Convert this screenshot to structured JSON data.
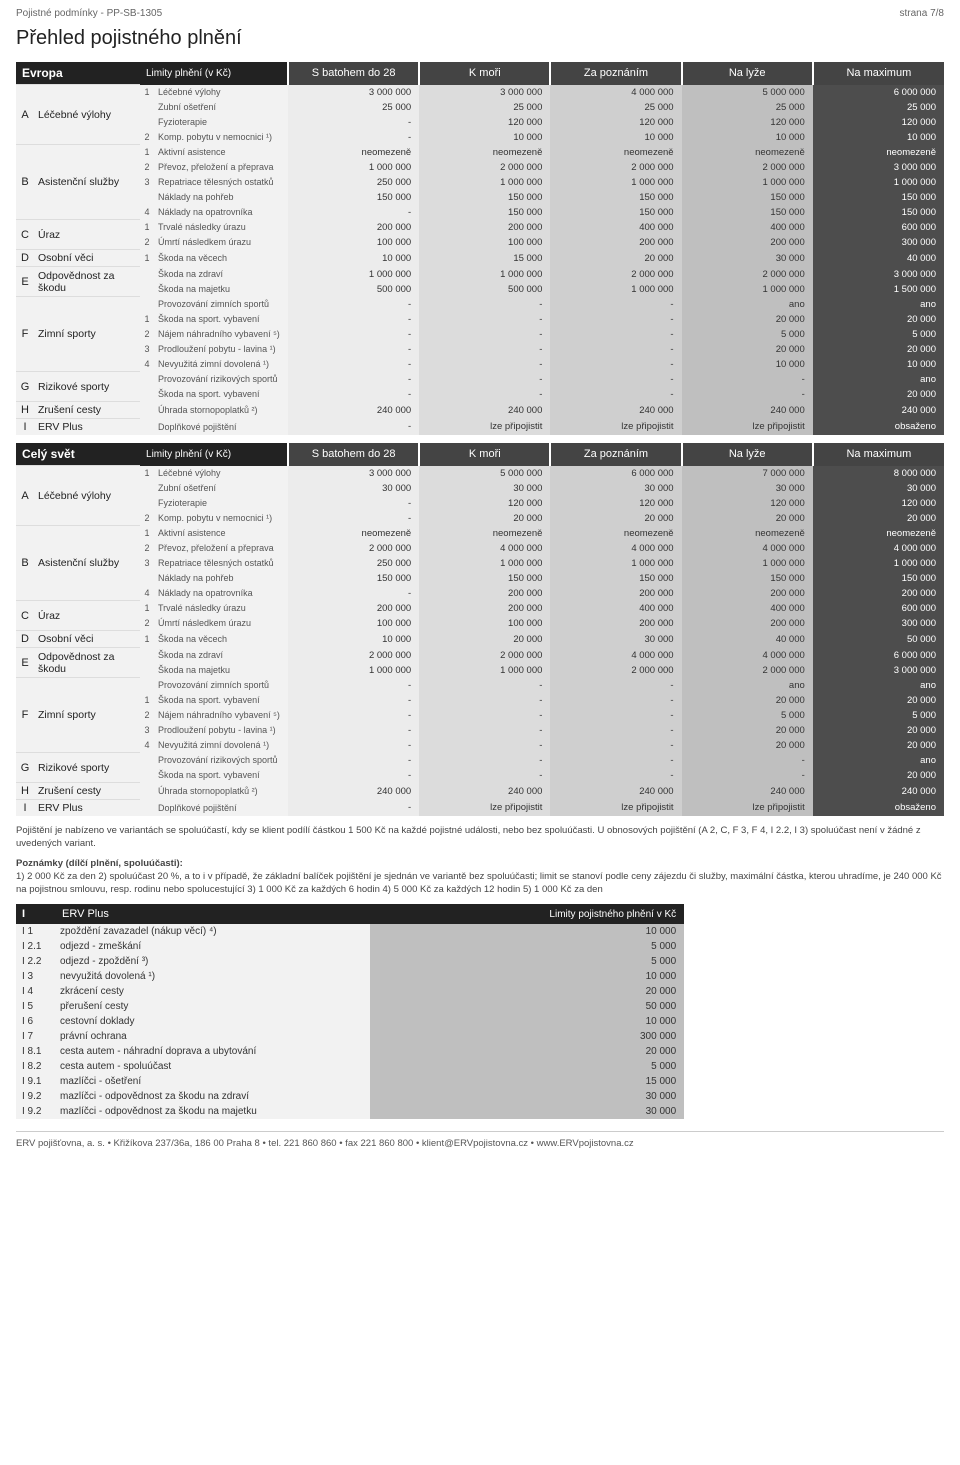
{
  "header": {
    "left": "Pojistné podmínky - PP-SB-1305",
    "right": "strana 7/8"
  },
  "title": "Přehled pojistného plnění",
  "region_headers": [
    "S batohem do 28",
    "K moři",
    "Za poznáním",
    "Na lyže",
    "Na maximum"
  ],
  "limits_label": "Limity plnění (v Kč)",
  "regions": [
    {
      "name": "Evropa",
      "rows": [
        {
          "l": "A",
          "cat": "Léčebné výlohy",
          "span": 4,
          "n": "1",
          "item": "Léčebné výlohy",
          "v": [
            "3 000 000",
            "3 000 000",
            "4 000 000",
            "5 000 000",
            "6 000 000"
          ]
        },
        {
          "n": "",
          "item": "Zubní ošetření",
          "v": [
            "25 000",
            "25 000",
            "25 000",
            "25 000",
            "25 000"
          ]
        },
        {
          "n": "",
          "item": "Fyzioterapie",
          "v": [
            "-",
            "120 000",
            "120 000",
            "120 000",
            "120 000"
          ]
        },
        {
          "n": "2",
          "item": "Komp. pobytu v nemocnici ¹)",
          "v": [
            "-",
            "10 000",
            "10 000",
            "10 000",
            "10 000"
          ]
        },
        {
          "l": "B",
          "cat": "Asistenční služby",
          "span": 5,
          "n": "1",
          "item": "Aktivní asistence",
          "v": [
            "neomezeně",
            "neomezeně",
            "neomezeně",
            "neomezeně",
            "neomezeně"
          ]
        },
        {
          "n": "2",
          "item": "Převoz, přeložení a přeprava",
          "v": [
            "1 000 000",
            "2 000 000",
            "2 000 000",
            "2 000 000",
            "3 000 000"
          ]
        },
        {
          "n": "3",
          "item": "Repatriace tělesných ostatků",
          "v": [
            "250 000",
            "1 000 000",
            "1 000 000",
            "1 000 000",
            "1 000 000"
          ]
        },
        {
          "n": "",
          "item": "Náklady na pohřeb",
          "v": [
            "150 000",
            "150 000",
            "150 000",
            "150 000",
            "150 000"
          ]
        },
        {
          "n": "4",
          "item": "Náklady na opatrovníka",
          "v": [
            "-",
            "150 000",
            "150 000",
            "150 000",
            "150 000"
          ]
        },
        {
          "l": "C",
          "cat": "Úraz",
          "span": 2,
          "n": "1",
          "item": "Trvalé následky úrazu",
          "v": [
            "200 000",
            "200 000",
            "400 000",
            "400 000",
            "600 000"
          ]
        },
        {
          "n": "2",
          "item": "Úmrtí následkem úrazu",
          "v": [
            "100 000",
            "100 000",
            "200 000",
            "200 000",
            "300 000"
          ]
        },
        {
          "l": "D",
          "cat": "Osobní věci",
          "span": 1,
          "n": "1",
          "item": "Škoda na věcech",
          "v": [
            "10 000",
            "15 000",
            "20 000",
            "30 000",
            "40 000"
          ]
        },
        {
          "l": "E",
          "cat": "Odpovědnost za škodu",
          "span": 2,
          "n": "",
          "item": "Škoda na zdraví",
          "v": [
            "1 000 000",
            "1 000 000",
            "2 000 000",
            "2 000 000",
            "3 000 000"
          ]
        },
        {
          "n": "",
          "item": "Škoda na majetku",
          "v": [
            "500 000",
            "500 000",
            "1 000 000",
            "1 000 000",
            "1 500 000"
          ]
        },
        {
          "l": "F",
          "cat": "Zimní sporty",
          "span": 5,
          "n": "",
          "item": "Provozování zimních sportů",
          "v": [
            "-",
            "-",
            "-",
            "ano",
            "ano"
          ]
        },
        {
          "n": "1",
          "item": "Škoda na sport. vybavení",
          "v": [
            "-",
            "-",
            "-",
            "20 000",
            "20 000"
          ]
        },
        {
          "n": "2",
          "item": "Nájem náhradního vybavení ⁵)",
          "v": [
            "-",
            "-",
            "-",
            "5 000",
            "5 000"
          ]
        },
        {
          "n": "3",
          "item": "Prodloužení pobytu - lavina ¹)",
          "v": [
            "-",
            "-",
            "-",
            "20 000",
            "20 000"
          ]
        },
        {
          "n": "4",
          "item": "Nevyužitá zimní dovolená ¹)",
          "v": [
            "-",
            "-",
            "-",
            "10 000",
            "10 000"
          ]
        },
        {
          "l": "G",
          "cat": "Rizikové sporty",
          "span": 2,
          "n": "",
          "item": "Provozování rizikových sportů",
          "v": [
            "-",
            "-",
            "-",
            "-",
            "ano"
          ]
        },
        {
          "n": "",
          "item": "Škoda na sport. vybavení",
          "v": [
            "-",
            "-",
            "-",
            "-",
            "20 000"
          ]
        },
        {
          "l": "H",
          "cat": "Zrušení cesty",
          "span": 1,
          "n": "",
          "item": "Úhrada stornopoplatků ²)",
          "v": [
            "240 000",
            "240 000",
            "240 000",
            "240 000",
            "240 000"
          ]
        },
        {
          "l": "I",
          "cat": "ERV Plus",
          "span": 1,
          "n": "",
          "item": "Doplňkové pojištění",
          "v": [
            "-",
            "lze připojistit",
            "lze připojistit",
            "lze připojistit",
            "obsaženo"
          ]
        }
      ]
    },
    {
      "name": "Celý svět",
      "rows": [
        {
          "l": "A",
          "cat": "Léčebné výlohy",
          "span": 4,
          "n": "1",
          "item": "Léčebné výlohy",
          "v": [
            "3 000 000",
            "5 000 000",
            "6 000 000",
            "7 000 000",
            "8 000 000"
          ]
        },
        {
          "n": "",
          "item": "Zubní ošetření",
          "v": [
            "30 000",
            "30 000",
            "30 000",
            "30 000",
            "30 000"
          ]
        },
        {
          "n": "",
          "item": "Fyzioterapie",
          "v": [
            "-",
            "120 000",
            "120 000",
            "120 000",
            "120 000"
          ]
        },
        {
          "n": "2",
          "item": "Komp. pobytu v nemocnici ¹)",
          "v": [
            "-",
            "20 000",
            "20 000",
            "20 000",
            "20 000"
          ]
        },
        {
          "l": "B",
          "cat": "Asistenční služby",
          "span": 5,
          "n": "1",
          "item": "Aktivní asistence",
          "v": [
            "neomezeně",
            "neomezeně",
            "neomezeně",
            "neomezeně",
            "neomezeně"
          ]
        },
        {
          "n": "2",
          "item": "Převoz, přeložení a přeprava",
          "v": [
            "2 000 000",
            "4 000 000",
            "4 000 000",
            "4 000 000",
            "4 000 000"
          ]
        },
        {
          "n": "3",
          "item": "Repatriace tělesných ostatků",
          "v": [
            "250 000",
            "1 000 000",
            "1 000 000",
            "1 000 000",
            "1 000 000"
          ]
        },
        {
          "n": "",
          "item": "Náklady na pohřeb",
          "v": [
            "150 000",
            "150 000",
            "150 000",
            "150 000",
            "150 000"
          ]
        },
        {
          "n": "4",
          "item": "Náklady na opatrovníka",
          "v": [
            "-",
            "200 000",
            "200 000",
            "200 000",
            "200 000"
          ]
        },
        {
          "l": "C",
          "cat": "Úraz",
          "span": 2,
          "n": "1",
          "item": "Trvalé následky úrazu",
          "v": [
            "200 000",
            "200 000",
            "400 000",
            "400 000",
            "600 000"
          ]
        },
        {
          "n": "2",
          "item": "Úmrtí následkem úrazu",
          "v": [
            "100 000",
            "100 000",
            "200 000",
            "200 000",
            "300 000"
          ]
        },
        {
          "l": "D",
          "cat": "Osobní věci",
          "span": 1,
          "n": "1",
          "item": "Škoda na věcech",
          "v": [
            "10 000",
            "20 000",
            "30 000",
            "40 000",
            "50 000"
          ]
        },
        {
          "l": "E",
          "cat": "Odpovědnost za škodu",
          "span": 2,
          "n": "",
          "item": "Škoda na zdraví",
          "v": [
            "2 000 000",
            "2 000 000",
            "4 000 000",
            "4 000 000",
            "6 000 000"
          ]
        },
        {
          "n": "",
          "item": "Škoda na majetku",
          "v": [
            "1 000 000",
            "1 000 000",
            "2 000 000",
            "2 000 000",
            "3 000 000"
          ]
        },
        {
          "l": "F",
          "cat": "Zimní sporty",
          "span": 5,
          "n": "",
          "item": "Provozování zimních sportů",
          "v": [
            "-",
            "-",
            "-",
            "ano",
            "ano"
          ]
        },
        {
          "n": "1",
          "item": "Škoda na sport. vybavení",
          "v": [
            "-",
            "-",
            "-",
            "20 000",
            "20 000"
          ]
        },
        {
          "n": "2",
          "item": "Nájem náhradního vybavení ⁵)",
          "v": [
            "-",
            "-",
            "-",
            "5 000",
            "5 000"
          ]
        },
        {
          "n": "3",
          "item": "Prodloužení pobytu - lavina ¹)",
          "v": [
            "-",
            "-",
            "-",
            "20 000",
            "20 000"
          ]
        },
        {
          "n": "4",
          "item": "Nevyužitá zimní dovolená ¹)",
          "v": [
            "-",
            "-",
            "-",
            "20 000",
            "20 000"
          ]
        },
        {
          "l": "G",
          "cat": "Rizikové sporty",
          "span": 2,
          "n": "",
          "item": "Provozování rizikových sportů",
          "v": [
            "-",
            "-",
            "-",
            "-",
            "ano"
          ]
        },
        {
          "n": "",
          "item": "Škoda na sport. vybavení",
          "v": [
            "-",
            "-",
            "-",
            "-",
            "20 000"
          ]
        },
        {
          "l": "H",
          "cat": "Zrušení cesty",
          "span": 1,
          "n": "",
          "item": "Úhrada stornopoplatků ²)",
          "v": [
            "240 000",
            "240 000",
            "240 000",
            "240 000",
            "240 000"
          ]
        },
        {
          "l": "I",
          "cat": "ERV Plus",
          "span": 1,
          "n": "",
          "item": "Doplňkové pojištění",
          "v": [
            "-",
            "lze připojistit",
            "lze připojistit",
            "lze připojistit",
            "obsaženo"
          ]
        }
      ]
    }
  ],
  "notes": {
    "p1": "Pojištění je nabízeno ve variantách se spoluúčastí, kdy se klient podílí částkou 1 500 Kč na každé pojistné události, nebo bez spoluúčasti. U obnosových pojištění (A 2, C,  F 3, F 4,  I 2.2, I 3) spoluúčast není v žádné z uvedených variant.",
    "p2_title": "Poznámky (dílčí plnění, spoluúčasti):",
    "p2": "1) 2 000 Kč za den  2) spoluúčast 20 %, a to i v případě, že základní balíček pojištění je sjednán ve variantě bez spoluúčasti; limit se stanoví podle ceny zájezdu či služby, maximální částka, kterou uhradíme, je 240 000 Kč na pojistnou smlouvu, resp. rodinu nebo spolucestující 3) 1 000 Kč za každých 6 hodin 4) 5 000 Kč za každých 12 hodin 5) 1 000 Kč za den"
  },
  "subtable": {
    "letter": "I",
    "title": "ERV Plus",
    "limits_label": "Limity pojistného plnění v Kč",
    "rows": [
      {
        "l": "I 1",
        "t": "zpoždění zavazadel (nákup věcí) ⁴)",
        "v": "10 000"
      },
      {
        "l": "I 2.1",
        "t": "odjezd - zmeškání",
        "v": "5 000"
      },
      {
        "l": "I 2.2",
        "t": "odjezd - zpoždění ³)",
        "v": "5 000"
      },
      {
        "l": "I 3",
        "t": "nevyužitá dovolená ¹)",
        "v": "10 000"
      },
      {
        "l": "I 4",
        "t": "zkrácení cesty",
        "v": "20 000"
      },
      {
        "l": "I 5",
        "t": "přerušení cesty",
        "v": "50 000"
      },
      {
        "l": "I 6",
        "t": "cestovní doklady",
        "v": "10 000"
      },
      {
        "l": "I 7",
        "t": "právní ochrana",
        "v": "300 000"
      },
      {
        "l": "I 8.1",
        "t": "cesta autem - náhradní doprava a ubytování",
        "v": "20 000"
      },
      {
        "l": "I 8.2",
        "t": "cesta autem - spoluúčast",
        "v": "5 000"
      },
      {
        "l": "I 9.1",
        "t": "mazlíčci - ošetření",
        "v": "15 000"
      },
      {
        "l": "I 9.2",
        "t": "mazlíčci - odpovědnost za škodu na zdraví",
        "v": "30 000"
      },
      {
        "l": "I 9.2",
        "t": "mazlíčci - odpovědnost za škodu na majetku",
        "v": "30 000"
      }
    ]
  },
  "footer": "ERV pojišťovna, a. s. • Křižíkova 237/36a, 186 00 Praha 8 • tel. 221 860 860 • fax 221 860 800 • klient@ERVpojistovna.cz • www.ERVpojistovna.cz",
  "colors": {
    "shades": [
      "#ececec",
      "#dcdcdc",
      "#cfcfcf",
      "#bfbfbf",
      "#4d4d4d"
    ]
  }
}
